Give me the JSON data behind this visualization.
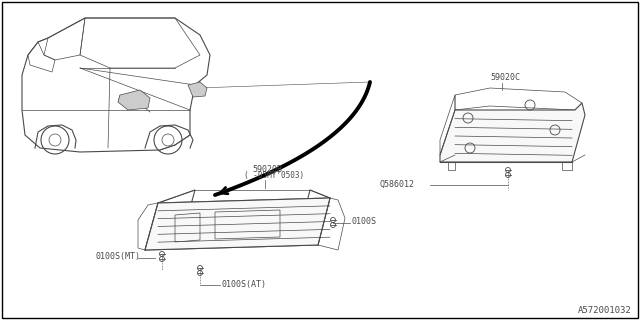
{
  "background_color": "#ffffff",
  "border_color": "#000000",
  "diagram_id": "A572001032",
  "labels": {
    "part_59020B": "59020B",
    "part_59020B_sub": "( -05MY’0503)",
    "part_59020C": "59020C",
    "part_Q586012": "Q586012",
    "part_0100S_1": "0100S",
    "part_0100S_MT": "0100S(MT)",
    "part_0100S_AT": "0100S(AT)"
  },
  "font_size_labels": 6.0,
  "font_size_diagram_id": 6.5,
  "line_color": "#4a4a4a",
  "thin_line": 0.5,
  "med_line": 0.8,
  "thick_line": 2.5
}
